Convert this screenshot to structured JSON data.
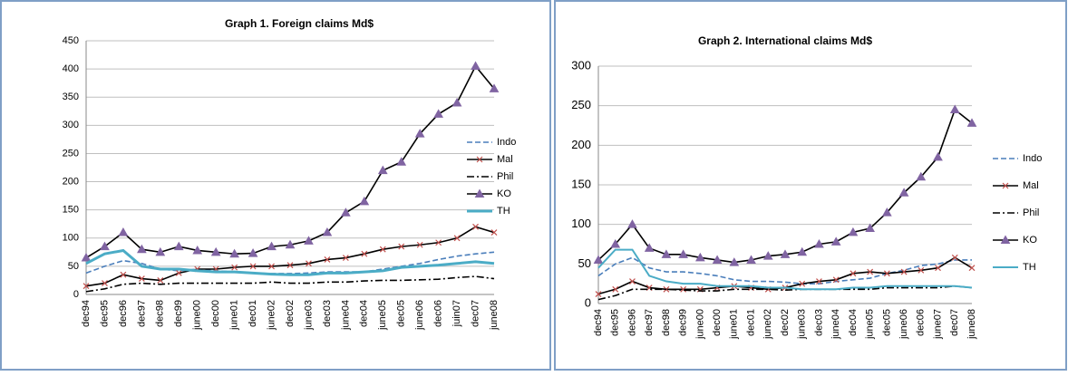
{
  "chart_data": [
    {
      "type": "line",
      "title": "Graph 1. Foreign claims Md$",
      "categories": [
        "dec94",
        "dec95",
        "dec96",
        "dec97",
        "dec98",
        "dec99",
        "june00",
        "dec00",
        "june01",
        "dec01",
        "june02",
        "dec02",
        "june03",
        "dec03",
        "june04",
        "dec04",
        "june05",
        "dec05",
        "june06",
        "dec06",
        "juin07",
        "dec07",
        "june08"
      ],
      "ylim": [
        0,
        450
      ],
      "yticks": [
        0,
        50,
        100,
        150,
        200,
        250,
        300,
        350,
        400,
        450
      ],
      "grid": true,
      "series": [
        {
          "name": "Indo",
          "color": "#4a7ebb",
          "dash": "dashed",
          "values": [
            38,
            50,
            60,
            55,
            45,
            42,
            45,
            42,
            40,
            38,
            37,
            37,
            38,
            40,
            40,
            40,
            45,
            50,
            55,
            62,
            68,
            72,
            75
          ]
        },
        {
          "name": "Mal",
          "color": "#000000",
          "marker": "x",
          "marker_color": "#c0504d",
          "values": [
            15,
            20,
            35,
            28,
            25,
            38,
            45,
            45,
            48,
            50,
            50,
            52,
            55,
            62,
            65,
            72,
            80,
            85,
            88,
            92,
            100,
            120,
            110
          ]
        },
        {
          "name": "Phil",
          "color": "#000000",
          "dash": "dashdot",
          "values": [
            5,
            10,
            18,
            20,
            18,
            20,
            20,
            20,
            20,
            20,
            22,
            20,
            20,
            22,
            22,
            24,
            25,
            25,
            26,
            27,
            30,
            32,
            28
          ]
        },
        {
          "name": "KO",
          "color": "#000000",
          "marker": "triangle",
          "marker_color": "#8064a2",
          "values": [
            65,
            85,
            110,
            80,
            75,
            85,
            78,
            75,
            72,
            73,
            85,
            88,
            95,
            110,
            145,
            165,
            220,
            235,
            285,
            320,
            340,
            405,
            365
          ]
        },
        {
          "name": "TH",
          "color": "#4bacc6",
          "width": 3,
          "values": [
            55,
            72,
            78,
            50,
            45,
            45,
            42,
            40,
            40,
            38,
            36,
            35,
            35,
            38,
            38,
            40,
            42,
            48,
            50,
            52,
            55,
            58,
            55
          ]
        }
      ]
    },
    {
      "type": "line",
      "title": "Graph 2. International claims Md$",
      "categories": [
        "dec94",
        "dec95",
        "dec96",
        "dec97",
        "dec98",
        "dec99",
        "june00",
        "dec00",
        "june01",
        "dec01",
        "june02",
        "dec02",
        "june03",
        "dec03",
        "june04",
        "dec04",
        "june05",
        "dec05",
        "june06",
        "dec06",
        "june07",
        "dec07",
        "june08"
      ],
      "ylim": [
        0,
        300
      ],
      "yticks": [
        0,
        50,
        100,
        150,
        200,
        250,
        300
      ],
      "grid": true,
      "series": [
        {
          "name": "Indo",
          "color": "#4a7ebb",
          "dash": "dashed",
          "values": [
            35,
            50,
            58,
            45,
            40,
            40,
            38,
            35,
            30,
            28,
            28,
            27,
            25,
            25,
            28,
            30,
            32,
            38,
            42,
            48,
            50,
            55,
            55
          ]
        },
        {
          "name": "Mal",
          "color": "#000000",
          "marker": "x",
          "marker_color": "#c0504d",
          "values": [
            12,
            18,
            28,
            20,
            18,
            18,
            18,
            20,
            22,
            20,
            18,
            20,
            25,
            28,
            30,
            38,
            40,
            38,
            40,
            42,
            45,
            58,
            45
          ]
        },
        {
          "name": "Phil",
          "color": "#000000",
          "dash": "dashdot",
          "values": [
            5,
            10,
            18,
            18,
            18,
            17,
            16,
            16,
            18,
            18,
            18,
            17,
            18,
            18,
            18,
            18,
            18,
            20,
            20,
            20,
            20,
            22,
            20
          ]
        },
        {
          "name": "KO",
          "color": "#000000",
          "marker": "triangle",
          "marker_color": "#8064a2",
          "values": [
            55,
            75,
            100,
            70,
            62,
            62,
            58,
            55,
            52,
            55,
            60,
            62,
            65,
            75,
            78,
            90,
            95,
            115,
            140,
            160,
            185,
            245,
            228
          ]
        },
        {
          "name": "TH",
          "color": "#4bacc6",
          "width": 2,
          "values": [
            45,
            68,
            68,
            35,
            28,
            25,
            25,
            22,
            22,
            22,
            20,
            20,
            18,
            18,
            18,
            20,
            20,
            22,
            22,
            22,
            22,
            22,
            20
          ]
        }
      ]
    }
  ]
}
